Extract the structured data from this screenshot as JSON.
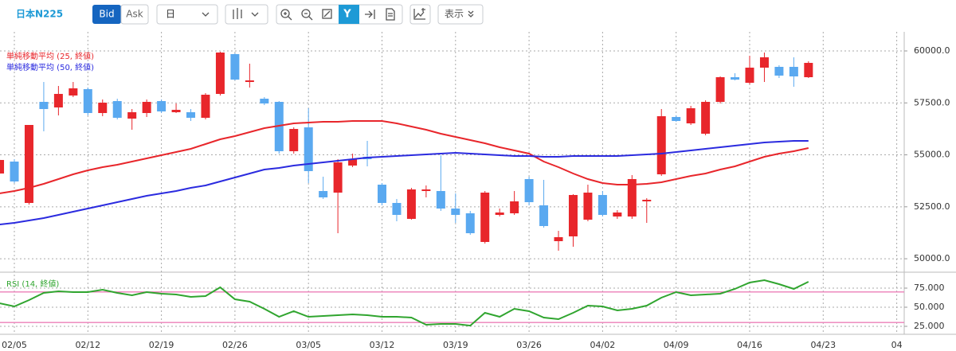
{
  "toolbar": {
    "symbol": "日本N225",
    "bid": "Bid",
    "ask": "Ask",
    "period": "日",
    "display": "表示"
  },
  "chart_data": [
    {
      "type": "candlestick",
      "categories": [
        null,
        "02/05",
        null,
        null,
        null,
        null,
        "02/12",
        null,
        null,
        null,
        null,
        "02/19",
        null,
        null,
        null,
        null,
        "02/26",
        null,
        null,
        null,
        null,
        "03/05",
        null,
        null,
        null,
        null,
        "03/12",
        null,
        null,
        null,
        null,
        "03/19",
        null,
        null,
        null,
        null,
        "03/26",
        null,
        null,
        null,
        null,
        "04/02",
        null,
        null,
        null,
        null,
        "04/09",
        null,
        null,
        null,
        null,
        "04/16",
        null,
        null,
        null,
        null,
        "04/23",
        null,
        null,
        null,
        null,
        "04"
      ],
      "open": [
        54102,
        54676,
        52685,
        57549,
        57281,
        57855,
        58161,
        57012,
        57587,
        56744,
        57012,
        57587,
        57051,
        57051,
        56783,
        57932,
        59847,
        58506,
        57702,
        57549,
        55174,
        56323,
        53259,
        53182,
        54485,
        54906,
        53565,
        52685,
        51919,
        53259,
        53259,
        52416,
        52187,
        50808,
        52110,
        52187,
        53834,
        52570,
        50846,
        51076,
        51880,
        53068,
        52033,
        52033,
        52761,
        54063,
        56821,
        56515,
        56017,
        57549,
        58736,
        58468,
        59196,
        59234,
        59234,
        58736,
        null,
        null,
        null,
        null,
        null,
        null
      ],
      "high": [
        54791,
        54791,
        56438,
        58506,
        58315,
        58506,
        58238,
        57664,
        57702,
        57204,
        57664,
        57664,
        57472,
        57204,
        57970,
        59962,
        59885,
        59387,
        57778,
        57587,
        56323,
        57242,
        53948,
        54791,
        55059,
        55672,
        53642,
        52876,
        53412,
        53527,
        54983,
        53144,
        52302,
        53259,
        52416,
        53259,
        53948,
        53795,
        51344,
        53106,
        53565,
        53259,
        52340,
        54025,
        52914,
        57204,
        56898,
        57357,
        57625,
        58774,
        58927,
        59770,
        59923,
        59310,
        59693,
        59502,
        null,
        null,
        null,
        null,
        null,
        null
      ],
      "low": [
        54063,
        53642,
        52608,
        56132,
        56898,
        57778,
        56898,
        56859,
        56706,
        56208,
        56821,
        57012,
        57012,
        56629,
        56706,
        57855,
        58583,
        58238,
        57395,
        55059,
        55059,
        53642,
        52876,
        51229,
        54408,
        54446,
        52570,
        51804,
        51880,
        52953,
        52302,
        51727,
        51153,
        50731,
        52033,
        52110,
        52570,
        51497,
        50387,
        50578,
        51804,
        52033,
        51919,
        51919,
        51727,
        53987,
        56591,
        56438,
        55940,
        57472,
        58583,
        58391,
        58506,
        58698,
        58276,
        58698,
        null,
        null,
        null,
        null,
        null,
        null
      ],
      "close": [
        54753,
        53719,
        56438,
        57204,
        57932,
        58200,
        57012,
        57510,
        56783,
        57051,
        57549,
        57089,
        57166,
        56783,
        57893,
        59923,
        58621,
        58583,
        57472,
        55174,
        56246,
        54217,
        52953,
        54638,
        54791,
        54791,
        52685,
        52110,
        53336,
        53336,
        52416,
        52110,
        51229,
        53182,
        52225,
        52761,
        52723,
        51574,
        51038,
        53068,
        53182,
        52110,
        52225,
        53834,
        52838,
        56859,
        56629,
        57242,
        57549,
        58736,
        58621,
        59196,
        59693,
        58813,
        58774,
        59425,
        null,
        null,
        null,
        null,
        null,
        null
      ],
      "up_color": "#e8262b",
      "down_color": "#5aa9f0",
      "series": [
        {
          "name": "単純移動平均 (25, 終値)",
          "color": "#e8262b",
          "values": [
            53144,
            53259,
            53412,
            53604,
            53834,
            54063,
            54255,
            54408,
            54523,
            54676,
            54830,
            54983,
            55136,
            55289,
            55519,
            55749,
            55902,
            56093,
            56285,
            56400,
            56515,
            56553,
            56591,
            56591,
            56629,
            56629,
            56629,
            56515,
            56361,
            56208,
            56017,
            55864,
            55710,
            55557,
            55366,
            55212,
            55059,
            54676,
            54408,
            54102,
            53834,
            53642,
            53565,
            53565,
            53604,
            53680,
            53834,
            53987,
            54102,
            54293,
            54446,
            54676,
            54906,
            55059,
            55174,
            55328,
            null,
            null,
            null,
            null,
            null,
            null
          ]
        },
        {
          "name": "単純移動平均 (50, 終値)",
          "color": "#2b2bdf",
          "values": [
            51650,
            51727,
            51842,
            51957,
            52110,
            52263,
            52416,
            52570,
            52723,
            52876,
            53029,
            53144,
            53259,
            53412,
            53527,
            53719,
            53910,
            54102,
            54293,
            54370,
            54485,
            54561,
            54638,
            54715,
            54791,
            54868,
            54906,
            54945,
            54983,
            55021,
            55059,
            55098,
            55059,
            55021,
            54983,
            54945,
            54945,
            54906,
            54906,
            54945,
            54945,
            54945,
            54945,
            54983,
            55021,
            55059,
            55136,
            55212,
            55289,
            55366,
            55442,
            55519,
            55596,
            55634,
            55672,
            55672,
            null,
            null,
            null,
            null,
            null,
            null
          ]
        }
      ],
      "ylim": [
        49429,
        60919
      ],
      "yticks": [
        {
          "value": 50000,
          "label": "50000.0"
        },
        {
          "value": 52500,
          "label": "52500.0"
        },
        {
          "value": 55000,
          "label": "55000.0"
        },
        {
          "value": 57500,
          "label": "57500.0"
        },
        {
          "value": 60000,
          "label": "60000.0"
        }
      ],
      "grid": true
    },
    {
      "type": "line",
      "series": [
        {
          "name": "RSI (14, 終値)",
          "color": "#30a52f",
          "values": [
            55.2,
            51.0,
            59.4,
            68.8,
            70.8,
            69.8,
            69.8,
            72.9,
            68.8,
            65.6,
            69.8,
            67.7,
            66.7,
            63.5,
            64.6,
            76.0,
            60.4,
            57.3,
            47.9,
            37.5,
            44.8,
            37.5,
            38.5,
            39.6,
            40.6,
            39.6,
            37.5,
            37.5,
            36.5,
            27.1,
            28.1,
            28.1,
            26.0,
            42.7,
            37.5,
            47.9,
            44.8,
            36.5,
            34.4,
            42.7,
            52.1,
            51.0,
            45.8,
            47.9,
            52.1,
            62.5,
            69.8,
            65.6,
            66.7,
            67.7,
            74.0,
            82.3,
            85.4,
            80.2,
            74.0,
            83.3,
            null,
            null,
            null,
            null,
            null,
            null
          ]
        }
      ],
      "ylim": [
        14.6,
        92.7
      ],
      "yticks": [
        {
          "value": 25,
          "label": "25.000"
        },
        {
          "value": 50,
          "label": "50.000"
        },
        {
          "value": 75,
          "label": "75.000"
        }
      ],
      "levels": [
        70,
        30
      ],
      "level_color": "#ec7fb8",
      "grid": true
    }
  ]
}
